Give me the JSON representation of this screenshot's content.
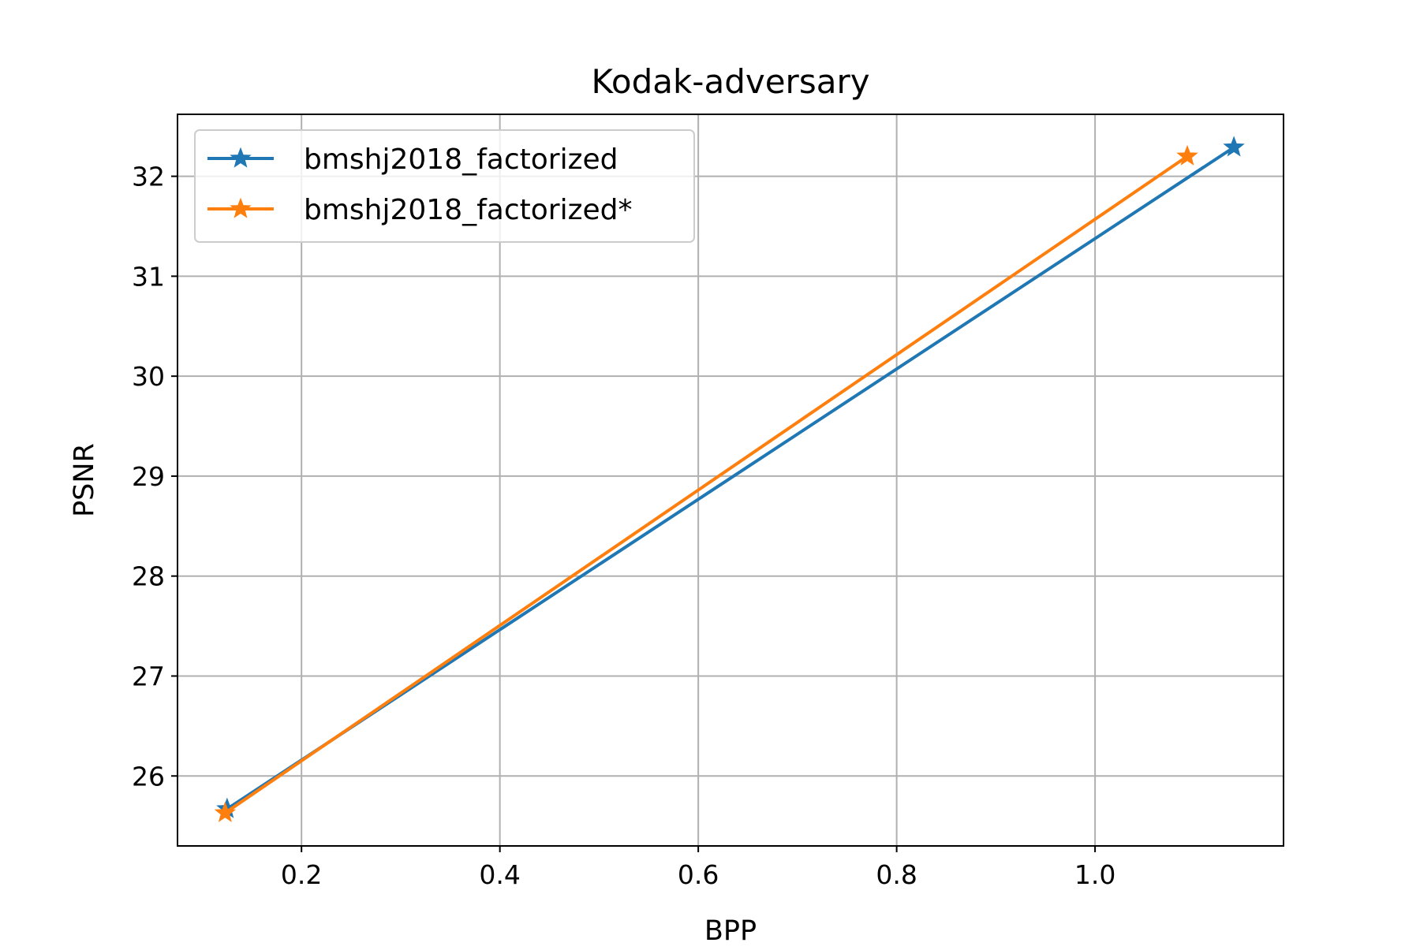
{
  "chart_data": {
    "type": "line",
    "title": "Kodak-adversary",
    "xlabel": "BPP",
    "ylabel": "PSNR",
    "xlim": [
      0.075,
      1.19
    ],
    "ylim": [
      25.3,
      32.62
    ],
    "xticks": [
      0.2,
      0.4,
      0.6,
      0.8,
      1.0
    ],
    "xtick_labels": [
      "0.2",
      "0.4",
      "0.6",
      "0.8",
      "1.0"
    ],
    "yticks": [
      26,
      27,
      28,
      29,
      30,
      31,
      32
    ],
    "ytick_labels": [
      "26",
      "27",
      "28",
      "29",
      "30",
      "31",
      "32"
    ],
    "grid": true,
    "legend_position": "top-left",
    "series": [
      {
        "name": "bmshj2018_factorized",
        "color": "#1f77b4",
        "marker": "star",
        "x": [
          0.125,
          1.14
        ],
        "y": [
          25.67,
          32.29
        ]
      },
      {
        "name": "bmshj2018_factorized*",
        "color": "#ff7f0e",
        "marker": "star",
        "x": [
          0.123,
          1.093
        ],
        "y": [
          25.63,
          32.2
        ]
      }
    ]
  }
}
